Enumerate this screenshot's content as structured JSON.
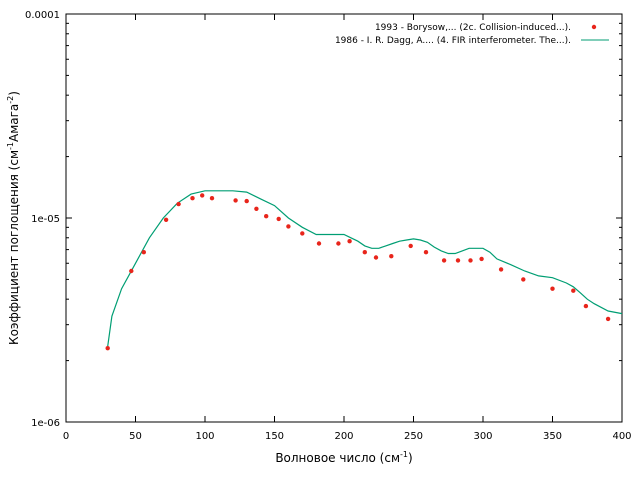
{
  "chart_data": {
    "type": "scatter",
    "xlabel_main": "Волновое число (см",
    "xlabel_sup": "-1",
    "xlabel_end": ")",
    "ylabel_main": "Коэффициент поглощения (см",
    "ylabel_sup1": "-1",
    "ylabel_mid": "Амага",
    "ylabel_sup2": "-2",
    "ylabel_end": ")",
    "xlim": [
      0,
      400
    ],
    "ylim": [
      1e-06,
      0.0001
    ],
    "yscale": "log",
    "x_ticks": [
      "0",
      "50",
      "100",
      "150",
      "200",
      "250",
      "300",
      "350",
      "400"
    ],
    "y_ticks": [
      "1e-06",
      "1e-05",
      "0.0001"
    ],
    "grid": false,
    "legend_position": "top-right",
    "colors": {
      "points": "#e8251b",
      "line": "#009e73"
    },
    "series": [
      {
        "name": "1993 - Borysow,... (2c. Collision-induced...).",
        "kind": "points",
        "x": [
          30,
          47,
          56,
          72,
          81,
          91,
          98,
          105,
          122,
          130,
          137,
          144,
          153,
          160,
          170,
          182,
          196,
          204,
          215,
          223,
          234,
          248,
          259,
          272,
          282,
          291,
          299,
          313,
          329,
          350,
          365,
          374,
          390
        ],
        "y": [
          2.3e-06,
          5.5e-06,
          6.8e-06,
          9.8e-06,
          1.17e-05,
          1.25e-05,
          1.29e-05,
          1.25e-05,
          1.22e-05,
          1.21e-05,
          1.11e-05,
          1.02e-05,
          9.9e-06,
          9.1e-06,
          8.4e-06,
          7.5e-06,
          7.5e-06,
          7.7e-06,
          6.8e-06,
          6.4e-06,
          6.5e-06,
          7.3e-06,
          6.8e-06,
          6.2e-06,
          6.2e-06,
          6.2e-06,
          6.3e-06,
          5.6e-06,
          5e-06,
          4.5e-06,
          4.4e-06,
          3.7e-06,
          3.2e-06
        ]
      },
      {
        "name": "1986 - I. R. Dagg, A.... (4. FIR interferometer. The...).",
        "kind": "line",
        "x": [
          30,
          33,
          40,
          50,
          60,
          70,
          80,
          90,
          100,
          110,
          120,
          130,
          140,
          150,
          160,
          170,
          180,
          190,
          200,
          205,
          210,
          215,
          220,
          225,
          230,
          235,
          240,
          245,
          250,
          255,
          260,
          265,
          270,
          275,
          280,
          285,
          290,
          295,
          300,
          305,
          310,
          320,
          330,
          340,
          350,
          360,
          365,
          370,
          375,
          380,
          390,
          400
        ],
        "y": [
          2.35e-06,
          3.3e-06,
          4.5e-06,
          6e-06,
          8e-06,
          1e-05,
          1.18e-05,
          1.31e-05,
          1.36e-05,
          1.36e-05,
          1.36e-05,
          1.34e-05,
          1.24e-05,
          1.15e-05,
          1e-05,
          9e-06,
          8.3e-06,
          8.3e-06,
          8.3e-06,
          8e-06,
          7.7e-06,
          7.3e-06,
          7.1e-06,
          7.1e-06,
          7.3e-06,
          7.5e-06,
          7.7e-06,
          7.8e-06,
          7.9e-06,
          7.8e-06,
          7.6e-06,
          7.2e-06,
          6.9e-06,
          6.7e-06,
          6.7e-06,
          6.9e-06,
          7.1e-06,
          7.1e-06,
          7.1e-06,
          6.8e-06,
          6.3e-06,
          5.9e-06,
          5.5e-06,
          5.2e-06,
          5.1e-06,
          4.8e-06,
          4.6e-06,
          4.3e-06,
          4e-06,
          3.8e-06,
          3.5e-06,
          3.4e-06
        ]
      }
    ]
  }
}
